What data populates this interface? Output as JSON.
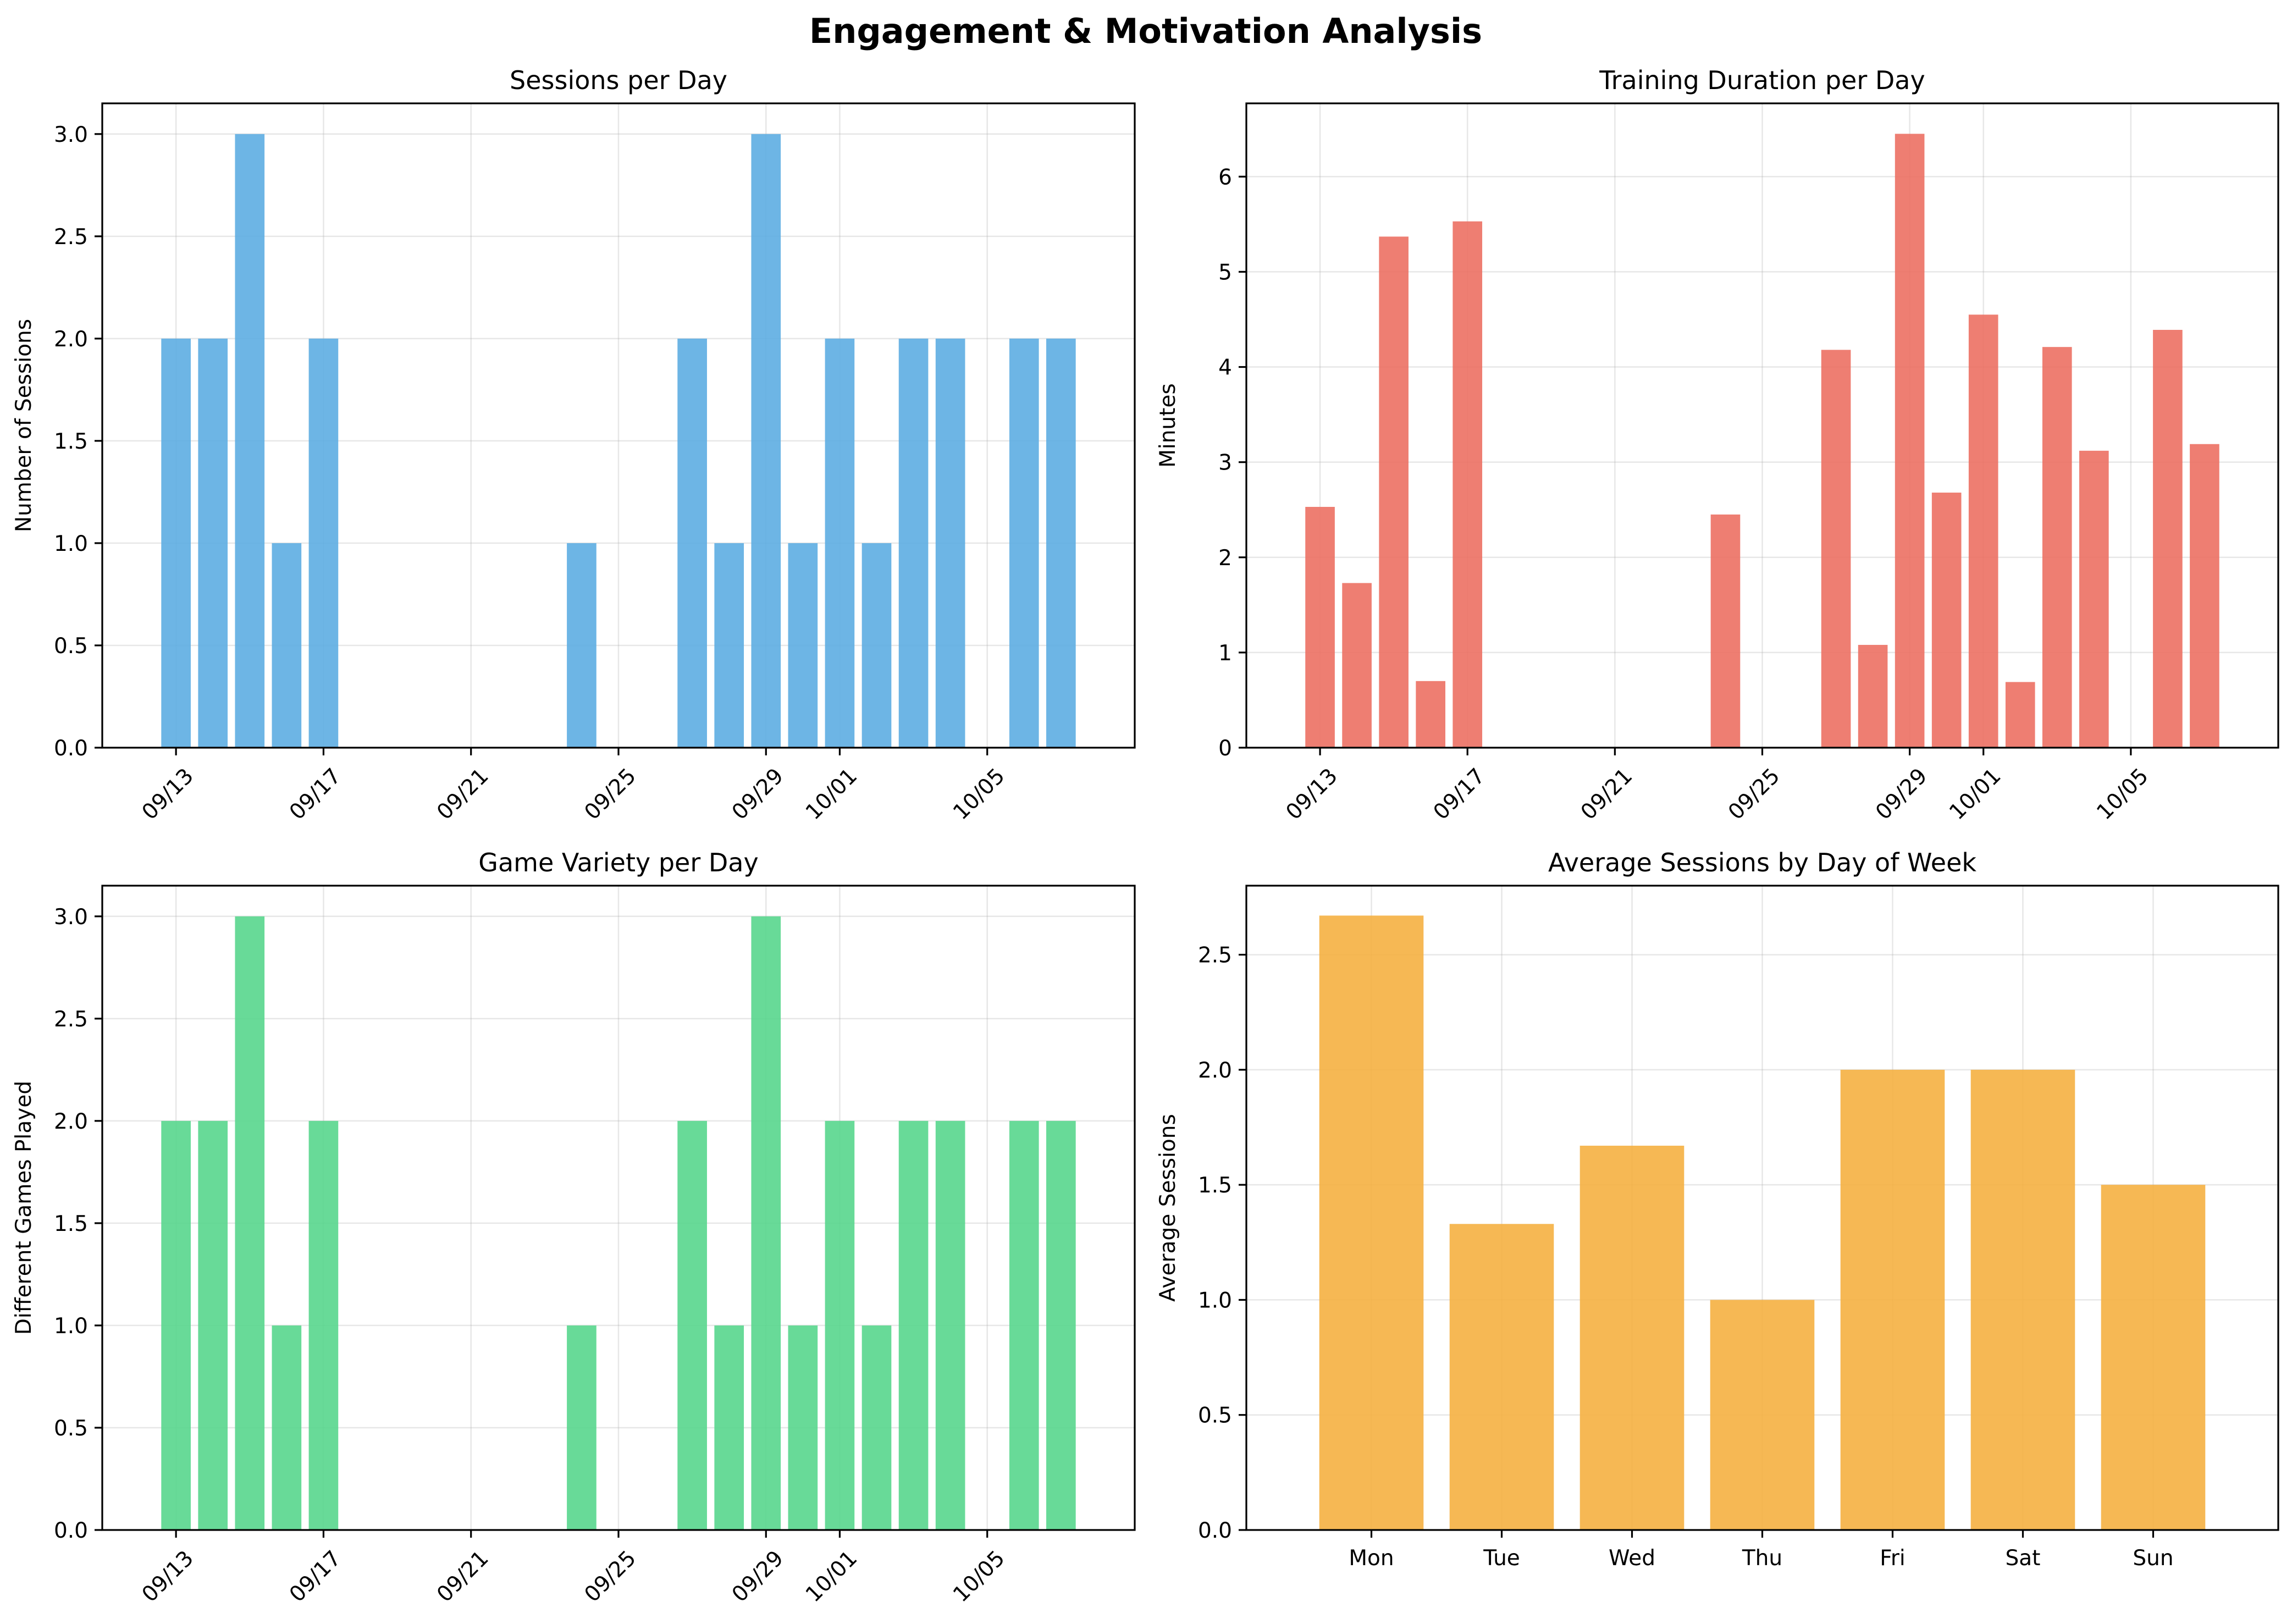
{
  "figure": {
    "title": "Engagement & Motivation Analysis"
  },
  "chart_data": [
    {
      "type": "bar",
      "title": "Sessions per Day",
      "xlabel": "",
      "ylabel": "Number of Sessions",
      "x_axis": "date",
      "year": 2024,
      "xlim": [
        "09/11",
        "10/09"
      ],
      "xticks": [
        "09/13",
        "09/17",
        "09/21",
        "09/25",
        "09/29",
        "10/01",
        "10/05"
      ],
      "ylim": [
        0,
        3.15
      ],
      "yticks": [
        0.0,
        0.5,
        1.0,
        1.5,
        2.0,
        2.5,
        3.0
      ],
      "grid": true,
      "color": "#5dade2",
      "x": [
        "09/13",
        "09/14",
        "09/15",
        "09/16",
        "09/17",
        "09/24",
        "09/27",
        "09/28",
        "09/29",
        "09/30",
        "10/01",
        "10/02",
        "10/03",
        "10/04",
        "10/06",
        "10/07"
      ],
      "values": [
        2,
        2,
        3,
        1,
        2,
        1,
        2,
        1,
        3,
        1,
        2,
        1,
        2,
        2,
        2,
        2
      ]
    },
    {
      "type": "bar",
      "title": "Training Duration per Day",
      "xlabel": "",
      "ylabel": "Minutes",
      "x_axis": "date",
      "year": 2024,
      "xlim": [
        "09/11",
        "10/09"
      ],
      "xticks": [
        "09/13",
        "09/17",
        "09/21",
        "09/25",
        "09/29",
        "10/01",
        "10/05"
      ],
      "ylim": [
        0,
        6.77
      ],
      "yticks": [
        0,
        1,
        2,
        3,
        4,
        5,
        6
      ],
      "grid": true,
      "color": "#ec7063",
      "x": [
        "09/13",
        "09/14",
        "09/15",
        "09/16",
        "09/17",
        "09/24",
        "09/27",
        "09/28",
        "09/29",
        "09/30",
        "10/01",
        "10/02",
        "10/03",
        "10/04",
        "10/06",
        "10/07"
      ],
      "values": [
        2.53,
        1.73,
        5.37,
        0.7,
        5.53,
        2.45,
        4.18,
        1.08,
        6.45,
        2.68,
        4.55,
        0.69,
        4.21,
        3.12,
        4.39,
        3.19
      ]
    },
    {
      "type": "bar",
      "title": "Game Variety per Day",
      "xlabel": "",
      "ylabel": "Different Games Played",
      "x_axis": "date",
      "year": 2024,
      "xlim": [
        "09/11",
        "10/09"
      ],
      "xticks": [
        "09/13",
        "09/17",
        "09/21",
        "09/25",
        "09/29",
        "10/01",
        "10/05"
      ],
      "ylim": [
        0,
        3.15
      ],
      "yticks": [
        0.0,
        0.5,
        1.0,
        1.5,
        2.0,
        2.5,
        3.0
      ],
      "grid": true,
      "color": "#58d68d",
      "x": [
        "09/13",
        "09/14",
        "09/15",
        "09/16",
        "09/17",
        "09/24",
        "09/27",
        "09/28",
        "09/29",
        "09/30",
        "10/01",
        "10/02",
        "10/03",
        "10/04",
        "10/06",
        "10/07"
      ],
      "values": [
        2,
        2,
        3,
        1,
        2,
        1,
        2,
        1,
        3,
        1,
        2,
        1,
        2,
        2,
        2,
        2
      ]
    },
    {
      "type": "bar",
      "title": "Average Sessions by Day of Week",
      "xlabel": "",
      "ylabel": "Average Sessions",
      "x_axis": "category",
      "ylim": [
        0,
        2.8
      ],
      "yticks": [
        0.0,
        0.5,
        1.0,
        1.5,
        2.0,
        2.5
      ],
      "grid": true,
      "color": "#f5b041",
      "categories": [
        "Mon",
        "Tue",
        "Wed",
        "Thu",
        "Fri",
        "Sat",
        "Sun"
      ],
      "values": [
        2.67,
        1.33,
        1.67,
        1.0,
        2.0,
        2.0,
        1.5
      ]
    }
  ]
}
